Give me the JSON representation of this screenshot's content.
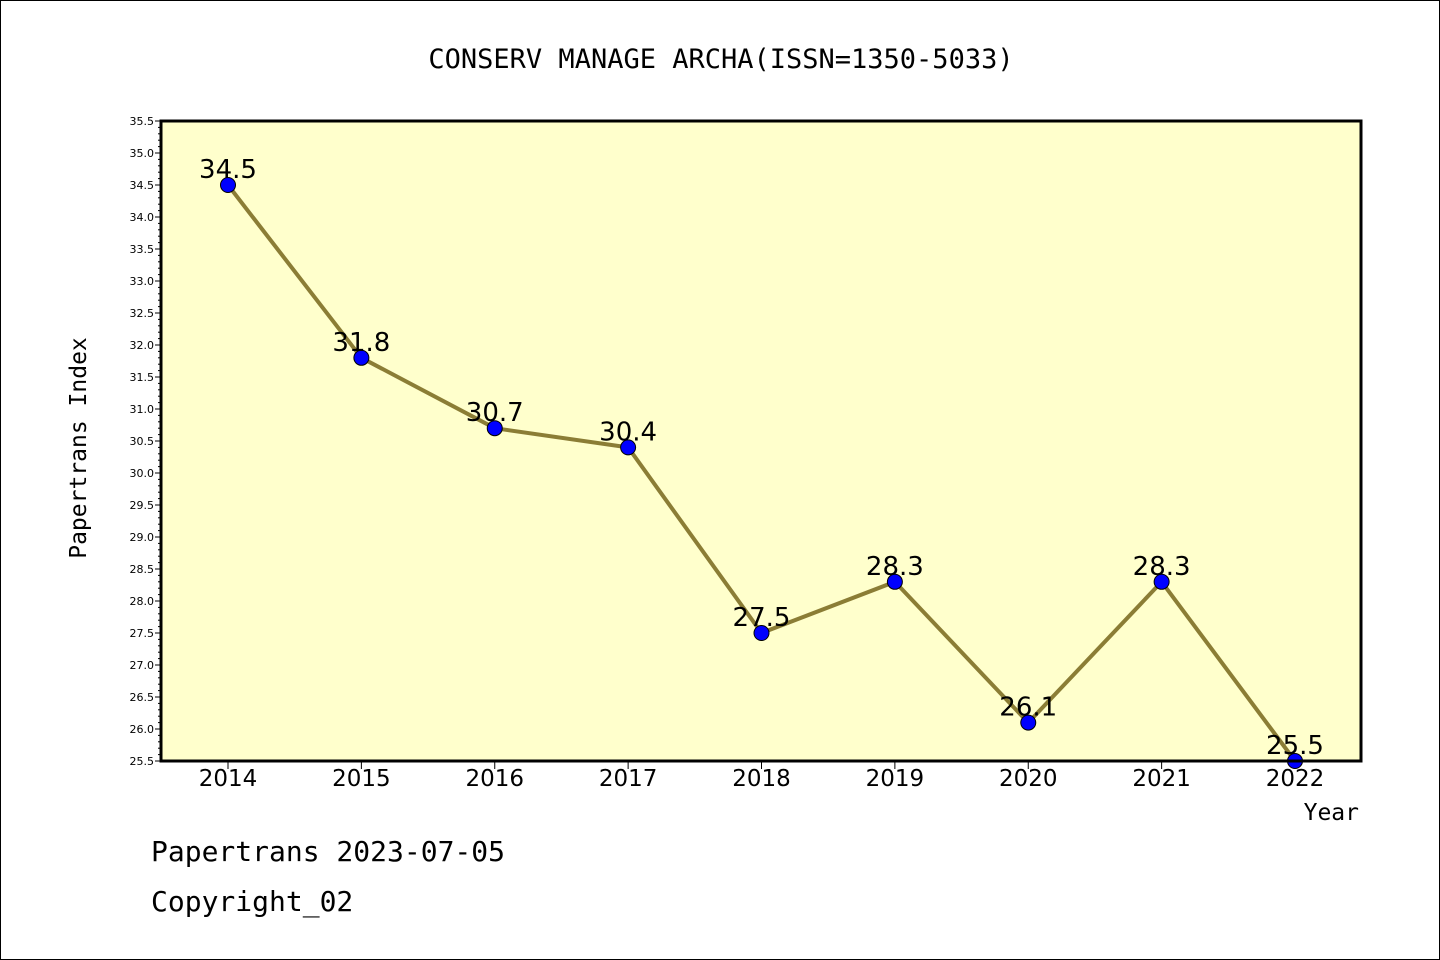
{
  "footer": {
    "line1": "Papertrans 2023-07-05",
    "line2": "Copyright_02"
  },
  "colors": {
    "plot_background": "#ffffcc",
    "line": "#8b7d35",
    "marker": "#0000ff"
  },
  "chart_data": {
    "type": "line",
    "title": "CONSERV MANAGE ARCHA(ISSN=1350-5033)",
    "xlabel": "Year",
    "ylabel": "Papertrans Index",
    "categories": [
      "2014",
      "2015",
      "2016",
      "2017",
      "2018",
      "2019",
      "2020",
      "2021",
      "2022"
    ],
    "series": [
      {
        "values": [
          34.5,
          31.8,
          30.7,
          30.4,
          27.5,
          28.3,
          26.1,
          28.3,
          25.5
        ],
        "labels": [
          "34.5",
          "31.8",
          "30.7",
          "30.4",
          "27.5",
          "28.3",
          "26.1",
          "28.3",
          "25.5"
        ]
      }
    ],
    "ylim": [
      25.5,
      35.5
    ],
    "yticks": [
      "25.5",
      "26.0",
      "26.5",
      "27.0",
      "27.5",
      "28.0",
      "28.5",
      "29.0",
      "29.5",
      "30.0",
      "30.5",
      "31.0",
      "31.5",
      "32.0",
      "32.5",
      "33.0",
      "33.5",
      "34.0",
      "34.5",
      "35.0",
      "35.5"
    ],
    "grid": false,
    "legend": "none"
  }
}
